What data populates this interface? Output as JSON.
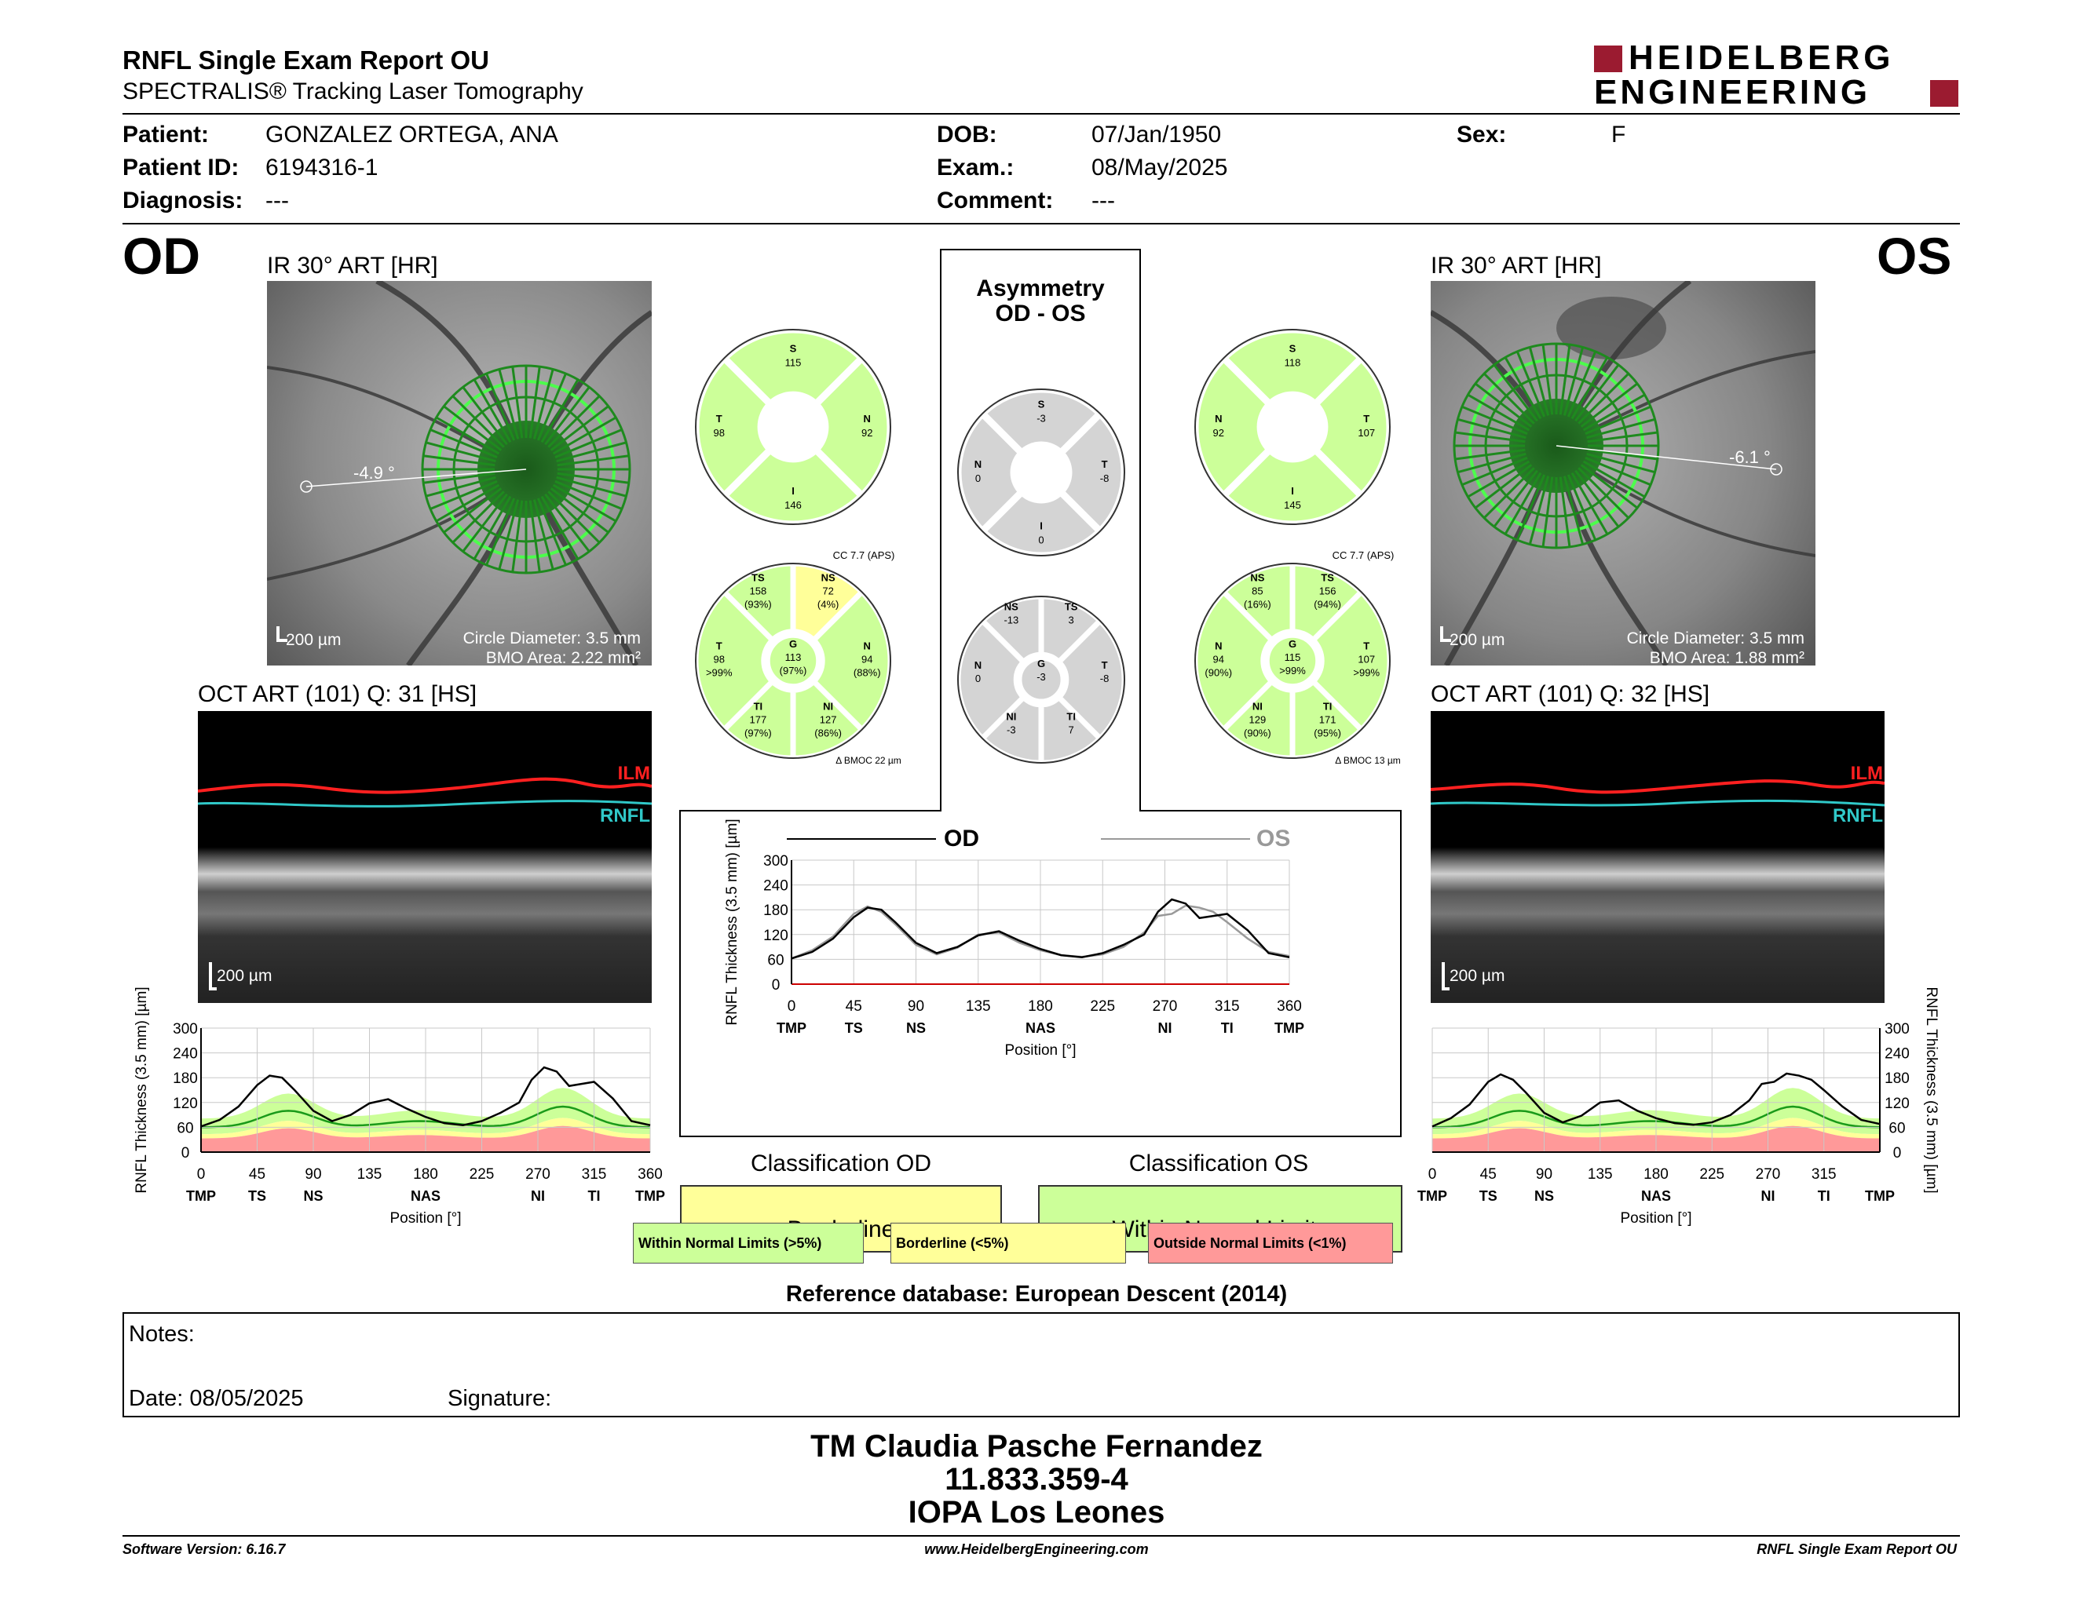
{
  "header": {
    "title": "RNFL Single Exam Report OU",
    "subtitle": "SPECTRALIS® Tracking Laser Tomography",
    "logo_line1": "HEIDELBERG",
    "logo_line2": "ENGINEERING"
  },
  "patient": {
    "patient_label": "Patient:",
    "patient_value": "GONZALEZ ORTEGA, ANA",
    "id_label": "Patient ID:",
    "id_value": "6194316-1",
    "diagnosis_label": "Diagnosis:",
    "diagnosis_value": "---",
    "dob_label": "DOB:",
    "dob_value": "07/Jan/1950",
    "exam_label": "Exam.:",
    "exam_value": "08/May/2025",
    "comment_label": "Comment:",
    "comment_value": "---",
    "sex_label": "Sex:",
    "sex_value": "F"
  },
  "od": {
    "eye": "OD",
    "ir_caption": "IR 30° ART [HR]",
    "angle": "-4.9 °",
    "scale": "200 µm",
    "circle_diameter": "Circle Diameter: 3.5 mm",
    "bmo_area": "BMO Area: 2.22 mm²",
    "oct_caption": "OCT ART (101) Q: 31 [HS]",
    "oct_scale": "200 µm",
    "ilm": "ILM",
    "rnfl": "RNFL",
    "quadrants": {
      "S": "115",
      "T": "98",
      "N": "92",
      "I": "146"
    },
    "sectors": {
      "cc": "CC 7.7 (APS)",
      "TS": {
        "val": "158",
        "pct": "(93%)"
      },
      "NS": {
        "val": "72",
        "pct": "(4%)"
      },
      "T": {
        "val": "98",
        "pct": ">99%"
      },
      "G": {
        "val": "113",
        "pct": "(97%)"
      },
      "N": {
        "val": "94",
        "pct": "(88%)"
      },
      "TI": {
        "val": "177",
        "pct": "(97%)"
      },
      "NI": {
        "val": "127",
        "pct": "(86%)"
      },
      "bmoc": "BMOC 22 µm"
    },
    "classification_label": "Classification OD",
    "classification_value": "Borderline"
  },
  "os": {
    "eye": "OS",
    "ir_caption": "IR 30° ART [HR]",
    "angle": "-6.1 °",
    "scale": "200 µm",
    "circle_diameter": "Circle Diameter: 3.5 mm",
    "bmo_area": "BMO Area: 1.88 mm²",
    "oct_caption": "OCT ART (101) Q: 32 [HS]",
    "oct_scale": "200 µm",
    "ilm": "ILM",
    "rnfl": "RNFL",
    "quadrants": {
      "S": "118",
      "N": "92",
      "T": "107",
      "I": "145"
    },
    "sectors": {
      "cc": "CC 7.7 (APS)",
      "NS": {
        "val": "85",
        "pct": "(16%)"
      },
      "TS": {
        "val": "156",
        "pct": "(94%)"
      },
      "N": {
        "val": "94",
        "pct": "(90%)"
      },
      "G": {
        "val": "115",
        "pct": ">99%"
      },
      "T": {
        "val": "107",
        "pct": ">99%"
      },
      "NI": {
        "val": "129",
        "pct": "(90%)"
      },
      "TI": {
        "val": "171",
        "pct": "(95%)"
      },
      "bmoc": "BMOC 13 µm"
    },
    "classification_label": "Classification OS",
    "classification_value": "Within Normal Limits"
  },
  "asymmetry": {
    "title1": "Asymmetry",
    "title2": "OD - OS",
    "quadrants": {
      "S": "-3",
      "N": "0",
      "T": "-8",
      "I": "0"
    },
    "sectors": {
      "NS": "-13",
      "TS": "3",
      "N": "0",
      "G": "-3",
      "T": "-8",
      "NI": "-3",
      "TI": "7"
    }
  },
  "sector_labels": {
    "S": "S",
    "T": "T",
    "N": "N",
    "I": "I",
    "TS": "TS",
    "NS": "NS",
    "G": "G",
    "TI": "TI",
    "NI": "NI"
  },
  "legend": {
    "od": "OD",
    "os": "OS",
    "wnl": "Within Normal Limits (>5%)",
    "bl": "Borderline (<5%)",
    "onl": "Outside Normal Limits (<1%)"
  },
  "reference": "Reference database: European Descent (2014)",
  "notes": {
    "notes_label": "Notes:",
    "date_label": "Date: 08/05/2025",
    "signature_label": "Signature:"
  },
  "signature_block": {
    "line1": "TM Claudia Pasche Fernandez",
    "line2": "11.833.359-4",
    "line3": "IOPA Los Leones"
  },
  "footer": {
    "left": "Software Version: 6.16.7",
    "center": "www.HeidelbergEngineering.com",
    "right": "RNFL Single Exam Report OU"
  },
  "colors": {
    "wnl": "#ccff99",
    "borderline": "#ffff99",
    "onl": "#ff9999",
    "grey": "#d4d4d4",
    "od_line": "#000000",
    "os_line": "#999999",
    "ilm": "#ff2020",
    "rnfl": "#30c8c8",
    "logo_red": "#9b1b30"
  },
  "chart_data": [
    {
      "type": "line",
      "ylabel": "RNFL Thickness (3.5 mm) [µm]",
      "xlabel": "Position [°]",
      "xlim": [
        0,
        360
      ],
      "ylim": [
        0,
        300
      ],
      "xticks": [
        0,
        45,
        90,
        135,
        180,
        225,
        270,
        315,
        360
      ],
      "yticks": [
        0,
        60,
        120,
        180,
        240,
        300
      ],
      "region_labels": [
        "TMP",
        "TS",
        "NS",
        "NAS",
        "NI",
        "TI",
        "TMP"
      ],
      "region_positions": [
        0,
        45,
        90,
        180,
        270,
        315,
        360
      ],
      "series": [
        {
          "name": "OD",
          "x": [
            0,
            15,
            30,
            45,
            55,
            65,
            75,
            90,
            105,
            120,
            135,
            150,
            165,
            180,
            195,
            210,
            225,
            240,
            255,
            265,
            275,
            285,
            295,
            305,
            315,
            330,
            345,
            360
          ],
          "y": [
            62,
            78,
            110,
            162,
            185,
            180,
            150,
            100,
            75,
            90,
            118,
            128,
            105,
            85,
            70,
            65,
            75,
            95,
            120,
            175,
            205,
            195,
            160,
            165,
            170,
            130,
            75,
            65
          ]
        },
        {
          "name": "OS",
          "x": [
            0,
            15,
            30,
            45,
            55,
            65,
            75,
            90,
            105,
            120,
            135,
            150,
            165,
            180,
            195,
            210,
            225,
            240,
            255,
            265,
            275,
            285,
            295,
            305,
            315,
            330,
            345,
            360
          ],
          "y": [
            62,
            82,
            115,
            170,
            188,
            175,
            145,
            95,
            72,
            88,
            120,
            125,
            100,
            82,
            70,
            66,
            72,
            90,
            125,
            165,
            170,
            190,
            185,
            175,
            150,
            110,
            78,
            68
          ]
        }
      ]
    }
  ]
}
